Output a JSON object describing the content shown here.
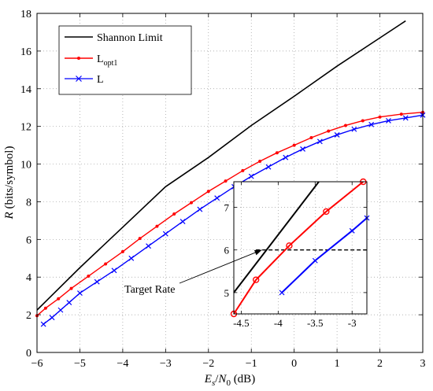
{
  "chart_data": {
    "type": "line",
    "xlabel": "E_s/N_0 (dB)",
    "xlabel_parts": {
      "e": "E",
      "s": "s",
      "slash": "/",
      "n": "N",
      "zero": "0",
      "unit": " (dB)"
    },
    "ylabel": "R (bits/symbol)",
    "ylabel_parts": {
      "r": "R",
      "unit": " (bits/symbol)"
    },
    "xlim": [
      -6,
      3
    ],
    "ylim": [
      0,
      18
    ],
    "xticks": [
      -6,
      -5,
      -4,
      -3,
      -2,
      -1,
      0,
      1,
      2,
      3
    ],
    "yticks": [
      0,
      2,
      4,
      6,
      8,
      10,
      12,
      14,
      16,
      18
    ],
    "xtick_labels": [
      "−6",
      "−5",
      "−4",
      "−3",
      "−2",
      "−1",
      "0",
      "1",
      "2",
      "3"
    ],
    "ytick_labels": [
      "0",
      "2",
      "4",
      "6",
      "8",
      "10",
      "12",
      "14",
      "16",
      "18"
    ],
    "grid": true,
    "legend_position": "top-left",
    "series": [
      {
        "name": "Shannon Limit",
        "legend": {
          "base": "Shannon Limit",
          "sub": ""
        },
        "color": "#000000",
        "marker": "none",
        "x": [
          -6.0,
          -5.0,
          -4.0,
          -3.0,
          -2.0,
          -1.0,
          0.0,
          1.0,
          2.0,
          2.6
        ],
        "y": [
          2.25,
          4.5,
          6.65,
          8.8,
          10.35,
          12.05,
          13.6,
          15.2,
          16.7,
          17.6
        ]
      },
      {
        "name": "Lopt1",
        "legend": {
          "base": "L",
          "sub": "opt1"
        },
        "color": "#ff0000",
        "marker": "dot",
        "x": [
          -6.0,
          -5.8,
          -5.5,
          -5.2,
          -4.8,
          -4.4,
          -4.0,
          -3.6,
          -3.2,
          -2.8,
          -2.4,
          -2.0,
          -1.6,
          -1.2,
          -0.8,
          -0.4,
          0.0,
          0.4,
          0.8,
          1.2,
          1.6,
          2.0,
          2.5,
          3.0
        ],
        "y": [
          1.95,
          2.35,
          2.85,
          3.4,
          4.05,
          4.7,
          5.35,
          6.05,
          6.7,
          7.35,
          7.95,
          8.55,
          9.1,
          9.65,
          10.15,
          10.6,
          11.0,
          11.4,
          11.75,
          12.05,
          12.3,
          12.5,
          12.65,
          12.75
        ]
      },
      {
        "name": "L",
        "legend": {
          "base": "L",
          "sub": ""
        },
        "color": "#0000ff",
        "marker": "x",
        "x": [
          -5.85,
          -5.65,
          -5.45,
          -5.25,
          -5.0,
          -4.6,
          -4.2,
          -3.8,
          -3.4,
          -3.0,
          -2.6,
          -2.2,
          -1.8,
          -1.4,
          -1.0,
          -0.6,
          -0.2,
          0.2,
          0.6,
          1.0,
          1.4,
          1.8,
          2.2,
          2.6,
          3.0
        ],
        "y": [
          1.5,
          1.85,
          2.25,
          2.65,
          3.15,
          3.75,
          4.35,
          5.0,
          5.65,
          6.3,
          6.95,
          7.6,
          8.2,
          8.8,
          9.35,
          9.85,
          10.35,
          10.8,
          11.2,
          11.55,
          11.85,
          12.1,
          12.3,
          12.45,
          12.6
        ]
      }
    ],
    "inset": {
      "xlim": [
        -4.6,
        -2.8
      ],
      "ylim": [
        4.5,
        7.6
      ],
      "xticks": [
        -4.5,
        -4.0,
        -3.5,
        -3.0
      ],
      "yticks": [
        5,
        6,
        7
      ],
      "xtick_labels": [
        "-4.5",
        "-4",
        "-3.5",
        "-3"
      ],
      "ytick_labels": [
        "5",
        "6",
        "7"
      ],
      "grid": true,
      "series": [
        {
          "name": "Shannon Limit",
          "color": "#000000",
          "marker": "none",
          "x": [
            -4.62,
            -3.45
          ],
          "y": [
            5.0,
            7.6
          ]
        },
        {
          "name": "Lopt1",
          "color": "#ff0000",
          "marker": "circle",
          "x": [
            -4.6,
            -4.3,
            -3.85,
            -3.35,
            -2.85
          ],
          "y": [
            4.5,
            5.3,
            6.1,
            6.9,
            7.6
          ]
        },
        {
          "name": "L",
          "color": "#0000ff",
          "marker": "x",
          "x": [
            -3.95,
            -3.5,
            -3.0,
            -2.8
          ],
          "y": [
            5.0,
            5.75,
            6.45,
            6.75
          ]
        }
      ],
      "target_line": {
        "y": 6.0,
        "x_from": -4.3,
        "x_to": -2.8
      }
    },
    "annotations": [
      {
        "text": "Target Rate",
        "arrow_to_x": -4.2,
        "arrow_to_y": 6.0
      }
    ]
  }
}
